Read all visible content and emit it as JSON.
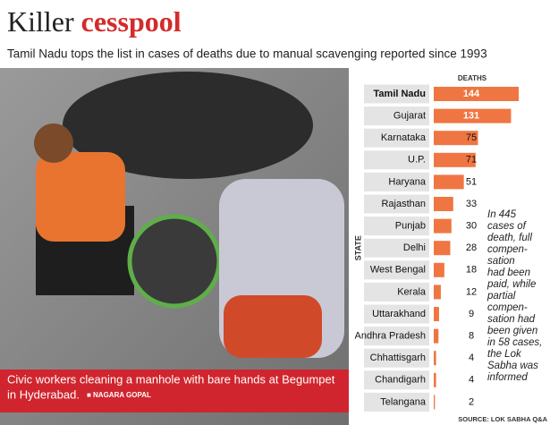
{
  "chart_data": {
    "type": "hbar",
    "title": "Killer",
    "title_highlight": "cesspool",
    "subtitle": "Tamil Nadu tops the list in cases of deaths due to manual scavenging reported since 1993",
    "value_header": "DEATHS",
    "category_axis_label": "STATE",
    "categories": [
      "Tamil Nadu",
      "Gujarat",
      "Karnataka",
      "U.P.",
      "Haryana",
      "Rajasthan",
      "Punjab",
      "Delhi",
      "West Bengal",
      "Kerala",
      "Uttarakhand",
      "Andhra Pradesh",
      "Chhattisgarh",
      "Chandigarh",
      "Telangana"
    ],
    "values": [
      144,
      131,
      75,
      71,
      51,
      33,
      30,
      28,
      18,
      12,
      9,
      8,
      4,
      4,
      2
    ],
    "color": "#ef7642",
    "annotation": [
      "In 445",
      "cases of",
      "death, full",
      "compen-",
      "sation",
      "had been",
      "paid, while",
      "partial",
      "compen-",
      "sation had",
      "been given",
      "in 58 cases,",
      "the Lok",
      "Sabha was",
      "informed"
    ],
    "source": "SOURCE: LOK SABHA Q&A"
  },
  "photo": {
    "caption": [
      "Civic workers cleaning a manhole with bare hands at Begumpet",
      "in Hyderabad."
    ],
    "credit": "■ NAGARA GOPAL"
  }
}
